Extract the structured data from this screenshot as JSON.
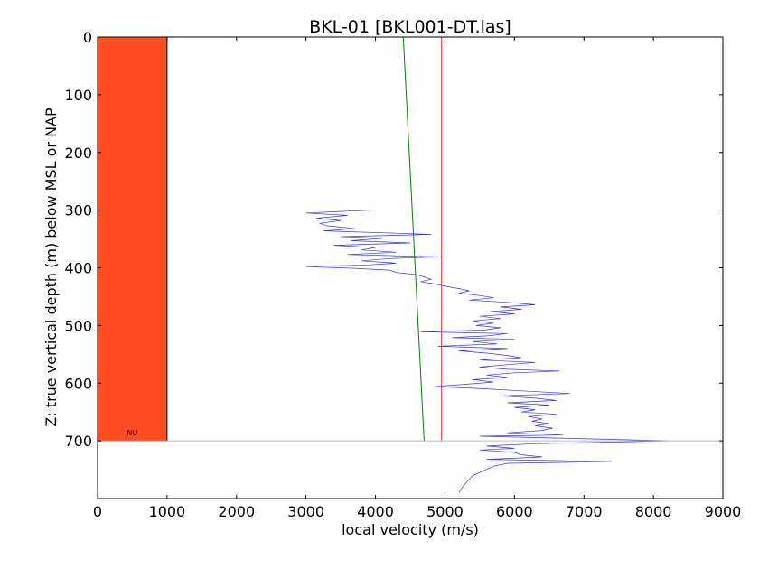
{
  "chart_data": {
    "type": "line",
    "title": "BKL-01 [BKL001-DT.las]",
    "xlabel": "local velocity (m/s)",
    "ylabel": "Z: true vertical depth (m) below MSL or NAP",
    "xlim": [
      0,
      9000
    ],
    "ylim": [
      800,
      0
    ],
    "y_inverted": true,
    "grid": false,
    "xticks": [
      "0",
      "1000",
      "2000",
      "3000",
      "4000",
      "5000",
      "6000",
      "7000",
      "8000",
      "9000"
    ],
    "yticks": [
      "0",
      "100",
      "200",
      "300",
      "400",
      "500",
      "600",
      "700"
    ],
    "formation_block": {
      "label": "NU",
      "x": [
        0,
        1000
      ],
      "depth": [
        0,
        700
      ],
      "color": "#ff4d21"
    },
    "horizon_depth": 700,
    "series": [
      {
        "color": "#3333ee",
        "points": [
          [
            3950,
            300
          ],
          [
            3000,
            305
          ],
          [
            3600,
            309
          ],
          [
            3150,
            314
          ],
          [
            3500,
            318
          ],
          [
            3200,
            323
          ],
          [
            3300,
            327
          ],
          [
            3700,
            332
          ],
          [
            3250,
            336
          ],
          [
            4300,
            340
          ],
          [
            4800,
            342
          ],
          [
            3500,
            346
          ],
          [
            4100,
            349
          ],
          [
            3650,
            353
          ],
          [
            4500,
            357
          ],
          [
            3400,
            361
          ],
          [
            4000,
            365
          ],
          [
            3800,
            369
          ],
          [
            4300,
            373
          ],
          [
            3600,
            377
          ],
          [
            4900,
            381
          ],
          [
            4200,
            384
          ],
          [
            3800,
            388
          ],
          [
            4300,
            392
          ],
          [
            3900,
            395
          ],
          [
            3000,
            398
          ],
          [
            3700,
            401
          ],
          [
            4200,
            404
          ],
          [
            4300,
            408
          ],
          [
            4600,
            412
          ],
          [
            4700,
            416
          ],
          [
            4800,
            420
          ],
          [
            4650,
            424
          ],
          [
            4850,
            428
          ],
          [
            5000,
            432
          ],
          [
            5200,
            436
          ],
          [
            5350,
            440
          ],
          [
            5200,
            444
          ],
          [
            5500,
            448
          ],
          [
            5700,
            452
          ],
          [
            5350,
            456
          ],
          [
            5900,
            460
          ],
          [
            6300,
            464
          ],
          [
            5800,
            468
          ],
          [
            6100,
            472
          ],
          [
            5650,
            476
          ],
          [
            6000,
            480
          ],
          [
            5500,
            484
          ],
          [
            5800,
            488
          ],
          [
            5400,
            492
          ],
          [
            5700,
            496
          ],
          [
            5450,
            500
          ],
          [
            5800,
            504
          ],
          [
            5550,
            508
          ],
          [
            4650,
            511
          ],
          [
            5900,
            514
          ],
          [
            5600,
            518
          ],
          [
            5100,
            521
          ],
          [
            6000,
            524
          ],
          [
            5400,
            528
          ],
          [
            5750,
            532
          ],
          [
            4900,
            536
          ],
          [
            5900,
            540
          ],
          [
            5200,
            544
          ],
          [
            5600,
            548
          ],
          [
            5900,
            552
          ],
          [
            6100,
            556
          ],
          [
            5500,
            560
          ],
          [
            6300,
            564
          ],
          [
            5900,
            568
          ],
          [
            5500,
            572
          ],
          [
            5900,
            576
          ],
          [
            6650,
            579
          ],
          [
            6000,
            582
          ],
          [
            5600,
            586
          ],
          [
            5900,
            590
          ],
          [
            5400,
            594
          ],
          [
            5700,
            598
          ],
          [
            5300,
            602
          ],
          [
            4850,
            606
          ],
          [
            5600,
            610
          ],
          [
            6200,
            614
          ],
          [
            6800,
            618
          ],
          [
            5800,
            622
          ],
          [
            6300,
            626
          ],
          [
            6600,
            630
          ],
          [
            5900,
            634
          ],
          [
            6500,
            638
          ],
          [
            6000,
            642
          ],
          [
            6300,
            646
          ],
          [
            6100,
            650
          ],
          [
            6600,
            654
          ],
          [
            6200,
            658
          ],
          [
            6400,
            662
          ],
          [
            6250,
            666
          ],
          [
            6500,
            670
          ],
          [
            6300,
            674
          ],
          [
            6550,
            678
          ],
          [
            6400,
            682
          ],
          [
            5900,
            686
          ],
          [
            6700,
            690
          ],
          [
            5500,
            692
          ],
          [
            8250,
            700
          ],
          [
            6300,
            705
          ],
          [
            5600,
            709
          ],
          [
            6000,
            713
          ],
          [
            5500,
            716
          ],
          [
            6000,
            720
          ],
          [
            6100,
            724
          ],
          [
            6400,
            728
          ],
          [
            5600,
            732
          ],
          [
            7400,
            736
          ],
          [
            5900,
            739
          ],
          [
            5700,
            744
          ],
          [
            5400,
            760
          ],
          [
            5250,
            780
          ],
          [
            5200,
            790
          ]
        ]
      },
      {
        "color": "#008000",
        "points": [
          [
            4400,
            0
          ],
          [
            4700,
            700
          ]
        ]
      },
      {
        "color": "#ff3333",
        "points": [
          [
            4950,
            0
          ],
          [
            4950,
            700
          ]
        ]
      },
      {
        "color": "#bbbbbb",
        "points": [
          [
            0,
            700
          ],
          [
            9000,
            700
          ]
        ]
      }
    ]
  }
}
